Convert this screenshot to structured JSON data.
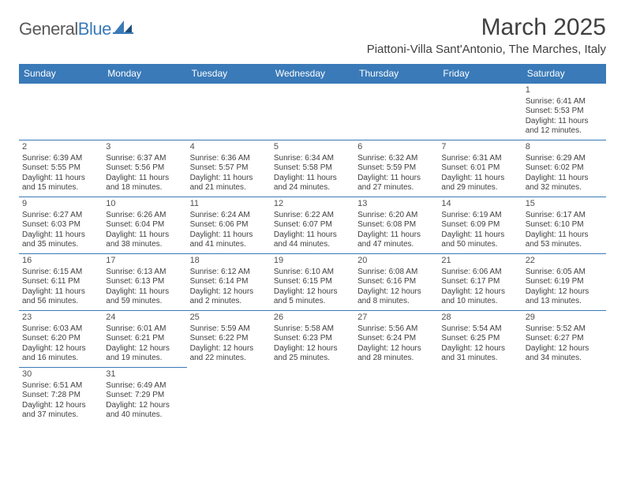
{
  "logo": {
    "general": "General",
    "blue": "Blue"
  },
  "title": "March 2025",
  "subtitle": "Piattoni-Villa Sant'Antonio, The Marches, Italy",
  "colors": {
    "header_bg": "#3a7ab8",
    "header_text": "#ffffff",
    "border": "#3a7ab8",
    "body_text": "#404040",
    "logo_gray": "#5a5a5a",
    "logo_blue": "#3a7ab8",
    "page_bg": "#ffffff"
  },
  "typography": {
    "title_fontsize": 30,
    "subtitle_fontsize": 15,
    "dayheader_fontsize": 12,
    "cell_fontsize": 10,
    "daynum_fontsize": 11
  },
  "weekdays": [
    "Sunday",
    "Monday",
    "Tuesday",
    "Wednesday",
    "Thursday",
    "Friday",
    "Saturday"
  ],
  "weeks": [
    [
      null,
      null,
      null,
      null,
      null,
      null,
      {
        "n": "1",
        "sunrise": "Sunrise: 6:41 AM",
        "sunset": "Sunset: 5:53 PM",
        "daylight": "Daylight: 11 hours and 12 minutes."
      }
    ],
    [
      {
        "n": "2",
        "sunrise": "Sunrise: 6:39 AM",
        "sunset": "Sunset: 5:55 PM",
        "daylight": "Daylight: 11 hours and 15 minutes."
      },
      {
        "n": "3",
        "sunrise": "Sunrise: 6:37 AM",
        "sunset": "Sunset: 5:56 PM",
        "daylight": "Daylight: 11 hours and 18 minutes."
      },
      {
        "n": "4",
        "sunrise": "Sunrise: 6:36 AM",
        "sunset": "Sunset: 5:57 PM",
        "daylight": "Daylight: 11 hours and 21 minutes."
      },
      {
        "n": "5",
        "sunrise": "Sunrise: 6:34 AM",
        "sunset": "Sunset: 5:58 PM",
        "daylight": "Daylight: 11 hours and 24 minutes."
      },
      {
        "n": "6",
        "sunrise": "Sunrise: 6:32 AM",
        "sunset": "Sunset: 5:59 PM",
        "daylight": "Daylight: 11 hours and 27 minutes."
      },
      {
        "n": "7",
        "sunrise": "Sunrise: 6:31 AM",
        "sunset": "Sunset: 6:01 PM",
        "daylight": "Daylight: 11 hours and 29 minutes."
      },
      {
        "n": "8",
        "sunrise": "Sunrise: 6:29 AM",
        "sunset": "Sunset: 6:02 PM",
        "daylight": "Daylight: 11 hours and 32 minutes."
      }
    ],
    [
      {
        "n": "9",
        "sunrise": "Sunrise: 6:27 AM",
        "sunset": "Sunset: 6:03 PM",
        "daylight": "Daylight: 11 hours and 35 minutes."
      },
      {
        "n": "10",
        "sunrise": "Sunrise: 6:26 AM",
        "sunset": "Sunset: 6:04 PM",
        "daylight": "Daylight: 11 hours and 38 minutes."
      },
      {
        "n": "11",
        "sunrise": "Sunrise: 6:24 AM",
        "sunset": "Sunset: 6:06 PM",
        "daylight": "Daylight: 11 hours and 41 minutes."
      },
      {
        "n": "12",
        "sunrise": "Sunrise: 6:22 AM",
        "sunset": "Sunset: 6:07 PM",
        "daylight": "Daylight: 11 hours and 44 minutes."
      },
      {
        "n": "13",
        "sunrise": "Sunrise: 6:20 AM",
        "sunset": "Sunset: 6:08 PM",
        "daylight": "Daylight: 11 hours and 47 minutes."
      },
      {
        "n": "14",
        "sunrise": "Sunrise: 6:19 AM",
        "sunset": "Sunset: 6:09 PM",
        "daylight": "Daylight: 11 hours and 50 minutes."
      },
      {
        "n": "15",
        "sunrise": "Sunrise: 6:17 AM",
        "sunset": "Sunset: 6:10 PM",
        "daylight": "Daylight: 11 hours and 53 minutes."
      }
    ],
    [
      {
        "n": "16",
        "sunrise": "Sunrise: 6:15 AM",
        "sunset": "Sunset: 6:11 PM",
        "daylight": "Daylight: 11 hours and 56 minutes."
      },
      {
        "n": "17",
        "sunrise": "Sunrise: 6:13 AM",
        "sunset": "Sunset: 6:13 PM",
        "daylight": "Daylight: 11 hours and 59 minutes."
      },
      {
        "n": "18",
        "sunrise": "Sunrise: 6:12 AM",
        "sunset": "Sunset: 6:14 PM",
        "daylight": "Daylight: 12 hours and 2 minutes."
      },
      {
        "n": "19",
        "sunrise": "Sunrise: 6:10 AM",
        "sunset": "Sunset: 6:15 PM",
        "daylight": "Daylight: 12 hours and 5 minutes."
      },
      {
        "n": "20",
        "sunrise": "Sunrise: 6:08 AM",
        "sunset": "Sunset: 6:16 PM",
        "daylight": "Daylight: 12 hours and 8 minutes."
      },
      {
        "n": "21",
        "sunrise": "Sunrise: 6:06 AM",
        "sunset": "Sunset: 6:17 PM",
        "daylight": "Daylight: 12 hours and 10 minutes."
      },
      {
        "n": "22",
        "sunrise": "Sunrise: 6:05 AM",
        "sunset": "Sunset: 6:19 PM",
        "daylight": "Daylight: 12 hours and 13 minutes."
      }
    ],
    [
      {
        "n": "23",
        "sunrise": "Sunrise: 6:03 AM",
        "sunset": "Sunset: 6:20 PM",
        "daylight": "Daylight: 12 hours and 16 minutes."
      },
      {
        "n": "24",
        "sunrise": "Sunrise: 6:01 AM",
        "sunset": "Sunset: 6:21 PM",
        "daylight": "Daylight: 12 hours and 19 minutes."
      },
      {
        "n": "25",
        "sunrise": "Sunrise: 5:59 AM",
        "sunset": "Sunset: 6:22 PM",
        "daylight": "Daylight: 12 hours and 22 minutes."
      },
      {
        "n": "26",
        "sunrise": "Sunrise: 5:58 AM",
        "sunset": "Sunset: 6:23 PM",
        "daylight": "Daylight: 12 hours and 25 minutes."
      },
      {
        "n": "27",
        "sunrise": "Sunrise: 5:56 AM",
        "sunset": "Sunset: 6:24 PM",
        "daylight": "Daylight: 12 hours and 28 minutes."
      },
      {
        "n": "28",
        "sunrise": "Sunrise: 5:54 AM",
        "sunset": "Sunset: 6:25 PM",
        "daylight": "Daylight: 12 hours and 31 minutes."
      },
      {
        "n": "29",
        "sunrise": "Sunrise: 5:52 AM",
        "sunset": "Sunset: 6:27 PM",
        "daylight": "Daylight: 12 hours and 34 minutes."
      }
    ],
    [
      {
        "n": "30",
        "sunrise": "Sunrise: 6:51 AM",
        "sunset": "Sunset: 7:28 PM",
        "daylight": "Daylight: 12 hours and 37 minutes."
      },
      {
        "n": "31",
        "sunrise": "Sunrise: 6:49 AM",
        "sunset": "Sunset: 7:29 PM",
        "daylight": "Daylight: 12 hours and 40 minutes."
      },
      null,
      null,
      null,
      null,
      null
    ]
  ]
}
